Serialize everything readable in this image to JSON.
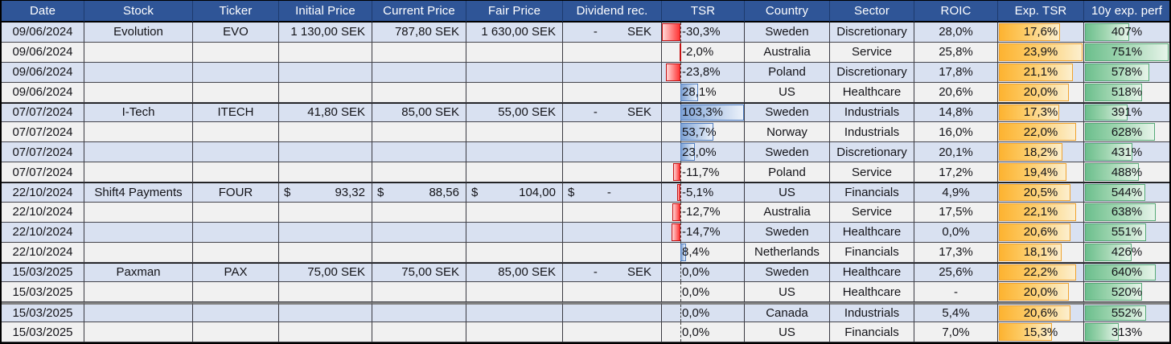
{
  "table_title": "portfolio-tracker-spreadsheet",
  "colors": {
    "header_bg": "#2F5597",
    "header_text": "#FFFFFF",
    "stripe_blue": "#D9E1F1",
    "stripe_gray": "#F1F1F1",
    "bar_positive": "#7FA3D6",
    "bar_negative": "#FF3434",
    "bar_exp_tsr": "#FDB331",
    "bar_perf": "#6CBF8D"
  },
  "bar_scales": {
    "tsr_axis_pct": 22.7,
    "tsr_neg_max": 30.3,
    "tsr_pos_max": 103.3,
    "exp_tsr_max": 23.9,
    "perf_max": 751
  },
  "columns": [
    {
      "key": "date",
      "label": "Date",
      "type": "center"
    },
    {
      "key": "stock",
      "label": "Stock",
      "type": "center"
    },
    {
      "key": "ticker",
      "label": "Ticker",
      "type": "center"
    },
    {
      "key": "initial",
      "label": "Initial Price",
      "type": "price"
    },
    {
      "key": "current",
      "label": "Current Price",
      "type": "price"
    },
    {
      "key": "fair",
      "label": "Fair Price",
      "type": "price"
    },
    {
      "key": "dividend",
      "label": "Dividend rec.",
      "type": "dividend"
    },
    {
      "key": "tsr",
      "label": "TSR",
      "type": "tsr"
    },
    {
      "key": "country",
      "label": "Country",
      "type": "center"
    },
    {
      "key": "sector",
      "label": "Sector",
      "type": "center"
    },
    {
      "key": "roic",
      "label": "ROIC",
      "type": "center"
    },
    {
      "key": "exp_tsr",
      "label": "Exp. TSR",
      "type": "bar_exp"
    },
    {
      "key": "perf",
      "label": "10y exp. perf",
      "type": "bar_perf"
    }
  ],
  "rows": [
    {
      "date": "09/06/2024",
      "stock": "Evolution",
      "ticker": "EVO",
      "initial": {
        "sym": "",
        "val": "1 130,00 SEK"
      },
      "current": {
        "sym": "",
        "val": "787,80 SEK"
      },
      "fair": {
        "sym": "",
        "val": "1 630,00 SEK"
      },
      "dividend": {
        "sym": "",
        "dash": "-",
        "cur": "SEK"
      },
      "tsr": {
        "v": -30.3,
        "t": "-30,3%"
      },
      "country": "Sweden",
      "sector": "Discretionary",
      "roic": "28,0%",
      "exp_tsr": {
        "v": 17.6,
        "t": "17,6%"
      },
      "perf": {
        "v": 407,
        "t": "407%"
      }
    },
    {
      "date": "09/06/2024",
      "stock": "",
      "ticker": "",
      "initial": null,
      "current": null,
      "fair": null,
      "dividend": null,
      "tsr": {
        "v": -2.0,
        "t": "-2,0%"
      },
      "country": "Australia",
      "sector": "Service",
      "roic": "25,8%",
      "exp_tsr": {
        "v": 23.9,
        "t": "23,9%"
      },
      "perf": {
        "v": 751,
        "t": "751%"
      }
    },
    {
      "date": "09/06/2024",
      "stock": "",
      "ticker": "",
      "initial": null,
      "current": null,
      "fair": null,
      "dividend": null,
      "tsr": {
        "v": -23.8,
        "t": "-23,8%"
      },
      "country": "Poland",
      "sector": "Discretionary",
      "roic": "17,8%",
      "exp_tsr": {
        "v": 21.1,
        "t": "21,1%"
      },
      "perf": {
        "v": 578,
        "t": "578%"
      }
    },
    {
      "date": "09/06/2024",
      "stock": "",
      "ticker": "",
      "initial": null,
      "current": null,
      "fair": null,
      "dividend": null,
      "tsr": {
        "v": 28.1,
        "t": "28,1%"
      },
      "country": "US",
      "sector": "Healthcare",
      "roic": "20,6%",
      "exp_tsr": {
        "v": 20.0,
        "t": "20,0%"
      },
      "perf": {
        "v": 518,
        "t": "518%"
      }
    },
    {
      "date": "07/07/2024",
      "stock": "I-Tech",
      "ticker": "ITECH",
      "initial": {
        "sym": "",
        "val": "41,80 SEK"
      },
      "current": {
        "sym": "",
        "val": "85,00 SEK"
      },
      "fair": {
        "sym": "",
        "val": "55,00 SEK"
      },
      "dividend": {
        "sym": "",
        "dash": "-",
        "cur": "SEK"
      },
      "tsr": {
        "v": 103.3,
        "t": "103,3%"
      },
      "country": "Sweden",
      "sector": "Industrials",
      "roic": "14,8%",
      "exp_tsr": {
        "v": 17.3,
        "t": "17,3%"
      },
      "perf": {
        "v": 391,
        "t": "391%"
      }
    },
    {
      "date": "07/07/2024",
      "stock": "",
      "ticker": "",
      "initial": null,
      "current": null,
      "fair": null,
      "dividend": null,
      "tsr": {
        "v": 53.7,
        "t": "53,7%"
      },
      "country": "Norway",
      "sector": "Industrials",
      "roic": "16,0%",
      "exp_tsr": {
        "v": 22.0,
        "t": "22,0%"
      },
      "perf": {
        "v": 628,
        "t": "628%"
      }
    },
    {
      "date": "07/07/2024",
      "stock": "",
      "ticker": "",
      "initial": null,
      "current": null,
      "fair": null,
      "dividend": null,
      "tsr": {
        "v": 23.0,
        "t": "23,0%"
      },
      "country": "Sweden",
      "sector": "Discretionary",
      "roic": "20,1%",
      "exp_tsr": {
        "v": 18.2,
        "t": "18,2%"
      },
      "perf": {
        "v": 431,
        "t": "431%"
      }
    },
    {
      "date": "07/07/2024",
      "stock": "",
      "ticker": "",
      "initial": null,
      "current": null,
      "fair": null,
      "dividend": null,
      "tsr": {
        "v": -11.7,
        "t": "-11,7%"
      },
      "country": "Poland",
      "sector": "Service",
      "roic": "17,2%",
      "exp_tsr": {
        "v": 19.4,
        "t": "19,4%"
      },
      "perf": {
        "v": 488,
        "t": "488%"
      }
    },
    {
      "date": "22/10/2024",
      "stock": "Shift4 Payments",
      "ticker": "FOUR",
      "initial": {
        "sym": "$",
        "val": "93,32"
      },
      "current": {
        "sym": "$",
        "val": "88,56"
      },
      "fair": {
        "sym": "$",
        "val": "104,00"
      },
      "dividend": {
        "sym": "$",
        "dash": "-",
        "cur": ""
      },
      "tsr": {
        "v": -5.1,
        "t": "-5,1%"
      },
      "country": "US",
      "sector": "Financials",
      "roic": "4,9%",
      "exp_tsr": {
        "v": 20.5,
        "t": "20,5%"
      },
      "perf": {
        "v": 544,
        "t": "544%"
      }
    },
    {
      "date": "22/10/2024",
      "stock": "",
      "ticker": "",
      "initial": null,
      "current": null,
      "fair": null,
      "dividend": null,
      "tsr": {
        "v": -12.7,
        "t": "-12,7%"
      },
      "country": "Australia",
      "sector": "Service",
      "roic": "17,5%",
      "exp_tsr": {
        "v": 22.1,
        "t": "22,1%"
      },
      "perf": {
        "v": 638,
        "t": "638%"
      }
    },
    {
      "date": "22/10/2024",
      "stock": "",
      "ticker": "",
      "initial": null,
      "current": null,
      "fair": null,
      "dividend": null,
      "tsr": {
        "v": -14.7,
        "t": "-14,7%"
      },
      "country": "Sweden",
      "sector": "Healthcare",
      "roic": "0,0%",
      "exp_tsr": {
        "v": 20.6,
        "t": "20,6%"
      },
      "perf": {
        "v": 551,
        "t": "551%"
      }
    },
    {
      "date": "22/10/2024",
      "stock": "",
      "ticker": "",
      "initial": null,
      "current": null,
      "fair": null,
      "dividend": null,
      "tsr": {
        "v": 8.4,
        "t": "8,4%"
      },
      "country": "Netherlands",
      "sector": "Financials",
      "roic": "17,3%",
      "exp_tsr": {
        "v": 18.1,
        "t": "18,1%"
      },
      "perf": {
        "v": 426,
        "t": "426%"
      }
    },
    {
      "date": "15/03/2025",
      "stock": "Paxman",
      "ticker": "PAX",
      "initial": {
        "sym": "",
        "val": "75,00 SEK"
      },
      "current": {
        "sym": "",
        "val": "75,00 SEK"
      },
      "fair": {
        "sym": "",
        "val": "85,00 SEK"
      },
      "dividend": {
        "sym": "",
        "dash": "-",
        "cur": "SEK"
      },
      "tsr": {
        "v": 0.0,
        "t": "0,0%"
      },
      "country": "Sweden",
      "sector": "Healthcare",
      "roic": "25,6%",
      "exp_tsr": {
        "v": 22.2,
        "t": "22,2%"
      },
      "perf": {
        "v": 640,
        "t": "640%"
      }
    },
    {
      "date": "15/03/2025",
      "stock": "",
      "ticker": "",
      "initial": null,
      "current": null,
      "fair": null,
      "dividend": null,
      "tsr": {
        "v": 0.0,
        "t": "0,0%"
      },
      "country": "US",
      "sector": "Healthcare",
      "roic": "-",
      "exp_tsr": {
        "v": 20.0,
        "t": "20,0%"
      },
      "perf": {
        "v": 520,
        "t": "520%"
      }
    },
    {
      "date": "15/03/2025",
      "stock": "",
      "ticker": "",
      "initial": null,
      "current": null,
      "fair": null,
      "dividend": null,
      "tsr": {
        "v": 0.0,
        "t": "0,0%"
      },
      "country": "Canada",
      "sector": "Industrials",
      "roic": "5,4%",
      "exp_tsr": {
        "v": 20.6,
        "t": "20,6%"
      },
      "perf": {
        "v": 552,
        "t": "552%"
      }
    },
    {
      "date": "15/03/2025",
      "stock": "",
      "ticker": "",
      "initial": null,
      "current": null,
      "fair": null,
      "dividend": null,
      "tsr": {
        "v": 0.0,
        "t": "0,0%"
      },
      "country": "US",
      "sector": "Financials",
      "roic": "7,0%",
      "exp_tsr": {
        "v": 15.3,
        "t": "15,3%"
      },
      "perf": {
        "v": 313,
        "t": "313%"
      }
    }
  ],
  "group_start_rows": [
    4,
    8,
    12
  ],
  "thick_border_rows": [
    14
  ]
}
